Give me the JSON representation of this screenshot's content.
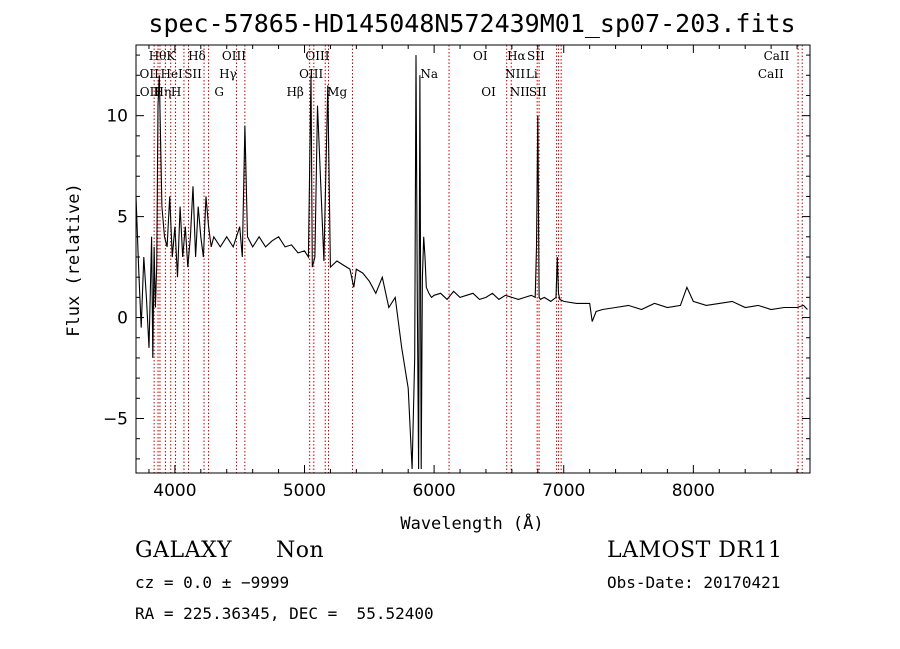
{
  "chart_data": {
    "type": "line",
    "title": "spec-57865-HD145048N572439M01_sp07-203.fits",
    "xlabel": "Wavelength (Å)",
    "ylabel": "Flux (relative)",
    "xlim": [
      3700,
      8900
    ],
    "ylim": [
      -7.7,
      13.5
    ],
    "xticks": [
      {
        "value": 4000,
        "label": "4000"
      },
      {
        "value": 5000,
        "label": "5000"
      },
      {
        "value": 6000,
        "label": "6000"
      },
      {
        "value": 7000,
        "label": "7000"
      },
      {
        "value": 8000,
        "label": "8000"
      }
    ],
    "yticks": [
      {
        "value": -5,
        "label": "−5"
      },
      {
        "value": 0,
        "label": "0"
      },
      {
        "value": 5,
        "label": "5"
      },
      {
        "value": 10,
        "label": "10"
      }
    ],
    "series": [
      {
        "color": "#000000",
        "x": [
          3700,
          3720,
          3740,
          3760,
          3780,
          3800,
          3820,
          3830,
          3840,
          3850,
          3860,
          3870,
          3880,
          3900,
          3920,
          3940,
          3960,
          3980,
          4000,
          4020,
          4040,
          4060,
          4080,
          4100,
          4120,
          4140,
          4160,
          4180,
          4200,
          4220,
          4240,
          4260,
          4280,
          4300,
          4350,
          4400,
          4450,
          4500,
          4520,
          4540,
          4560,
          4600,
          4650,
          4700,
          4750,
          4800,
          4850,
          4900,
          4950,
          5000,
          5030,
          5050,
          5060,
          5080,
          5100,
          5150,
          5180,
          5200,
          5250,
          5300,
          5350,
          5380,
          5400,
          5450,
          5500,
          5550,
          5600,
          5650,
          5700,
          5750,
          5800,
          5830,
          5850,
          5860,
          5870,
          5880,
          5890,
          5900,
          5910,
          5920,
          5930,
          5940,
          5960,
          5980,
          6000,
          6050,
          6100,
          6150,
          6200,
          6250,
          6300,
          6350,
          6400,
          6450,
          6500,
          6550,
          6600,
          6650,
          6700,
          6750,
          6780,
          6790,
          6800,
          6810,
          6820,
          6850,
          6900,
          6940,
          6950,
          6960,
          6970,
          7000,
          7100,
          7200,
          7220,
          7250,
          7300,
          7400,
          7500,
          7600,
          7700,
          7800,
          7900,
          7950,
          8000,
          8100,
          8200,
          8300,
          8400,
          8500,
          8600,
          8700,
          8800,
          8850,
          8880
        ],
        "y": [
          6.0,
          2.5,
          -0.5,
          3.0,
          1.0,
          -1.5,
          4.0,
          -2.0,
          3.5,
          0.5,
          2.5,
          10.5,
          12.0,
          5.5,
          4.0,
          3.5,
          6.0,
          3.0,
          4.5,
          2.0,
          5.5,
          3.0,
          4.5,
          2.5,
          4.0,
          6.5,
          3.0,
          5.5,
          4.0,
          3.0,
          6.0,
          4.5,
          3.5,
          4.0,
          3.5,
          4.0,
          3.5,
          4.5,
          3.0,
          9.5,
          4.0,
          3.5,
          4.0,
          3.5,
          3.8,
          4.0,
          3.5,
          3.6,
          3.2,
          3.3,
          3.0,
          12.0,
          2.5,
          3.0,
          10.5,
          2.8,
          11.5,
          2.5,
          2.8,
          2.6,
          2.4,
          1.5,
          2.4,
          2.2,
          1.8,
          1.2,
          2.0,
          0.5,
          1.0,
          -1.5,
          -3.5,
          -7.5,
          -2.0,
          13.0,
          1.0,
          -7.5,
          12.0,
          -7.5,
          2.0,
          4.0,
          3.0,
          1.5,
          1.2,
          1.0,
          1.1,
          1.2,
          0.9,
          1.3,
          1.0,
          1.1,
          1.2,
          0.9,
          1.0,
          1.2,
          0.9,
          1.1,
          1.0,
          0.9,
          1.0,
          1.1,
          1.0,
          3.5,
          10.0,
          1.0,
          0.9,
          1.0,
          0.8,
          1.0,
          3.0,
          1.2,
          0.9,
          0.8,
          0.7,
          0.7,
          -0.2,
          0.3,
          0.4,
          0.5,
          0.6,
          0.4,
          0.7,
          0.5,
          0.6,
          1.5,
          0.8,
          0.6,
          0.7,
          0.8,
          0.5,
          0.6,
          0.4,
          0.5,
          0.5,
          0.6,
          0.4
        ]
      }
    ],
    "spectral_lines": [
      {
        "label": "OII",
        "x": 3727,
        "row": 1
      },
      {
        "label": "OII",
        "x": 3729,
        "row": 2
      },
      {
        "label": "Hθ",
        "x": 3798,
        "row": 0
      },
      {
        "label": "HeI",
        "x": 3889,
        "row": 1
      },
      {
        "label": "Hη",
        "x": 3835,
        "row": 2
      },
      {
        "label": "K",
        "x": 3934,
        "row": 0
      },
      {
        "label": "H",
        "x": 3969,
        "row": 2
      },
      {
        "label": "Hδ",
        "x": 4102,
        "row": 0
      },
      {
        "label": "SII",
        "x": 4072,
        "row": 1
      },
      {
        "label": "OIII",
        "x": 4363,
        "row": 0
      },
      {
        "label": "Hγ",
        "x": 4341,
        "row": 1
      },
      {
        "label": "G",
        "x": 4305,
        "row": 2
      },
      {
        "label": "Hβ",
        "x": 4861,
        "row": 2
      },
      {
        "label": "OIII",
        "x": 5007,
        "row": 0
      },
      {
        "label": "OIII",
        "x": 4959,
        "row": 1
      },
      {
        "label": "Mg",
        "x": 5175,
        "row": 2
      },
      {
        "label": "Na",
        "x": 5894,
        "row": 1
      },
      {
        "label": "OI",
        "x": 6300,
        "row": 0
      },
      {
        "label": "OI",
        "x": 6364,
        "row": 2
      },
      {
        "label": "Hα",
        "x": 6563,
        "row": 0
      },
      {
        "label": "SII",
        "x": 6717,
        "row": 0
      },
      {
        "label": "NII",
        "x": 6548,
        "row": 1
      },
      {
        "label": "Li",
        "x": 6708,
        "row": 1
      },
      {
        "label": "NII",
        "x": 6584,
        "row": 2
      },
      {
        "label": "SII",
        "x": 6731,
        "row": 2
      },
      {
        "label": "CaII",
        "x": 8542,
        "row": 0
      },
      {
        "label": "CaII",
        "x": 8498,
        "row": 1
      }
    ]
  },
  "spectral_line_positions": [
    3840,
    3870,
    3885,
    3927,
    3968,
    4005,
    4070,
    4105,
    4225,
    4260,
    4475,
    4540,
    5040,
    5072,
    5160,
    5185,
    5370,
    6115,
    6560,
    6595,
    6795,
    6810,
    6945,
    6960,
    6980,
    8808,
    8840
  ],
  "info": {
    "class": "GALAXY",
    "subclass": "Non",
    "survey": "LAMOST DR11",
    "cz": "cz = 0.0 ± −9999",
    "obs_date": "Obs-Date: 20170421",
    "radec": "RA = 225.36345, DEC =  55.52400"
  }
}
